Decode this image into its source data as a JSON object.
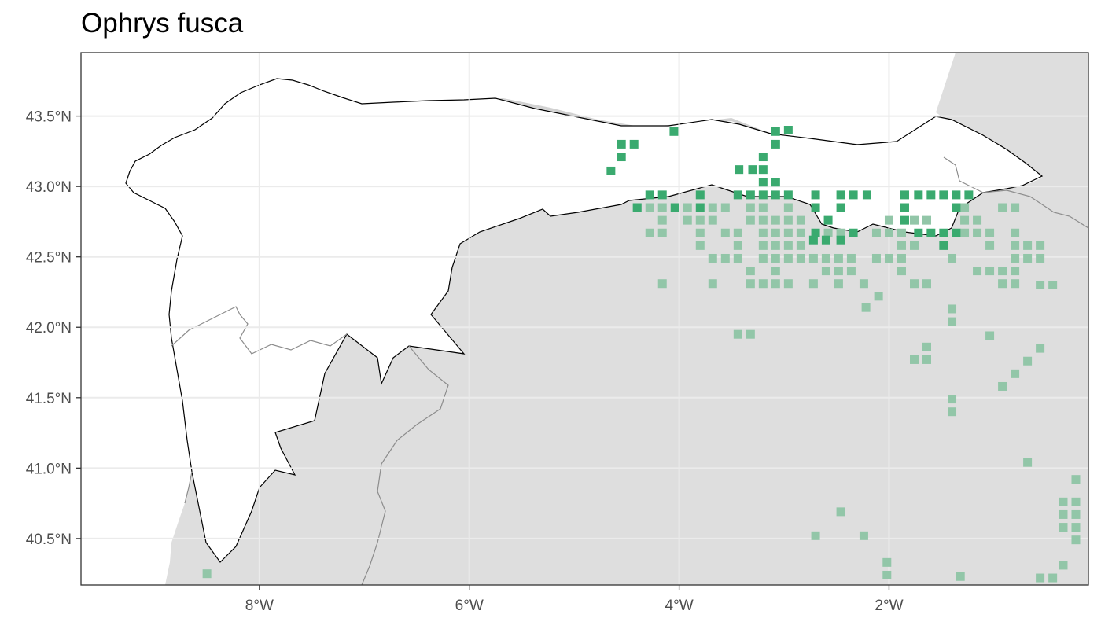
{
  "title": "Ophrys fusca",
  "map": {
    "lon_range": [
      -9.7,
      -0.1
    ],
    "lat_range": [
      40.17,
      43.95
    ],
    "x_ticks": [
      {
        "lon": -8,
        "label": "8°W"
      },
      {
        "lon": -6,
        "label": "6°W"
      },
      {
        "lon": -4,
        "label": "4°W"
      },
      {
        "lon": -2,
        "label": "2°W"
      }
    ],
    "y_ticks": [
      {
        "lat": 43.5,
        "label": "43.5°N"
      },
      {
        "lat": 43.0,
        "label": "43.0°N"
      },
      {
        "lat": 42.5,
        "label": "42.5°N"
      },
      {
        "lat": 42.0,
        "label": "42.0°N"
      },
      {
        "lat": 41.5,
        "label": "41.5°N"
      },
      {
        "lat": 41.0,
        "label": "41.0°N"
      },
      {
        "lat": 40.5,
        "label": "40.5°N"
      }
    ],
    "colors": {
      "panel_background": "#ffffff",
      "land_outside_region": "#dedede",
      "region_fill": "#ffffff",
      "region_border": "#000000",
      "internal_borders": "#8c8c8c",
      "grid": "#ebebeb",
      "records_inside": "#3aaa6f",
      "records_outside": "#92c6a8"
    },
    "legend": "none"
  },
  "records_inside": [
    [
      -4.65,
      43.11
    ],
    [
      -4.55,
      43.21
    ],
    [
      -4.55,
      43.3
    ],
    [
      -4.43,
      43.3
    ],
    [
      -4.05,
      43.39
    ],
    [
      -3.43,
      43.12
    ],
    [
      -3.3,
      43.12
    ],
    [
      -3.2,
      43.12
    ],
    [
      -3.2,
      43.21
    ],
    [
      -3.08,
      43.3
    ],
    [
      -3.08,
      43.39
    ],
    [
      -2.96,
      43.4
    ],
    [
      -3.2,
      43.03
    ],
    [
      -3.08,
      43.03
    ],
    [
      -3.2,
      42.94
    ],
    [
      -3.08,
      42.94
    ],
    [
      -2.96,
      42.94
    ],
    [
      -3.32,
      42.94
    ],
    [
      -3.44,
      42.94
    ],
    [
      -4.28,
      42.94
    ],
    [
      -4.16,
      42.94
    ],
    [
      -3.8,
      42.94
    ],
    [
      -4.4,
      42.85
    ],
    [
      -4.04,
      42.85
    ],
    [
      -3.8,
      42.85
    ],
    [
      -2.7,
      42.94
    ],
    [
      -2.46,
      42.94
    ],
    [
      -2.34,
      42.94
    ],
    [
      -2.21,
      42.94
    ],
    [
      -2.7,
      42.85
    ],
    [
      -2.46,
      42.85
    ],
    [
      -2.58,
      42.76
    ],
    [
      -2.7,
      42.67
    ],
    [
      -2.34,
      42.67
    ],
    [
      -2.46,
      42.62
    ],
    [
      -2.6,
      42.62
    ],
    [
      -2.72,
      42.62
    ],
    [
      -1.72,
      42.94
    ],
    [
      -1.6,
      42.94
    ],
    [
      -1.48,
      42.94
    ],
    [
      -1.36,
      42.94
    ],
    [
      -1.24,
      42.94
    ],
    [
      -1.85,
      42.94
    ],
    [
      -1.85,
      42.85
    ],
    [
      -1.36,
      42.85
    ],
    [
      -1.85,
      42.76
    ],
    [
      -1.6,
      42.67
    ],
    [
      -1.48,
      42.67
    ],
    [
      -1.36,
      42.67
    ],
    [
      -1.72,
      42.67
    ],
    [
      -1.48,
      42.58
    ]
  ],
  "records_outside": [
    [
      -4.4,
      42.85
    ],
    [
      -4.28,
      42.85
    ],
    [
      -4.16,
      42.85
    ],
    [
      -3.92,
      42.85
    ],
    [
      -3.68,
      42.85
    ],
    [
      -3.56,
      42.85
    ],
    [
      -3.32,
      42.85
    ],
    [
      -3.2,
      42.85
    ],
    [
      -2.96,
      42.85
    ],
    [
      -4.16,
      42.76
    ],
    [
      -3.92,
      42.76
    ],
    [
      -3.8,
      42.76
    ],
    [
      -3.68,
      42.76
    ],
    [
      -3.32,
      42.76
    ],
    [
      -3.2,
      42.76
    ],
    [
      -3.08,
      42.76
    ],
    [
      -2.96,
      42.76
    ],
    [
      -2.84,
      42.76
    ],
    [
      -4.28,
      42.67
    ],
    [
      -4.16,
      42.67
    ],
    [
      -3.8,
      42.67
    ],
    [
      -3.56,
      42.67
    ],
    [
      -3.44,
      42.67
    ],
    [
      -3.2,
      42.67
    ],
    [
      -3.08,
      42.67
    ],
    [
      -2.96,
      42.67
    ],
    [
      -2.84,
      42.67
    ],
    [
      -2.58,
      42.67
    ],
    [
      -2.46,
      42.67
    ],
    [
      -3.8,
      42.58
    ],
    [
      -3.44,
      42.58
    ],
    [
      -3.2,
      42.58
    ],
    [
      -3.08,
      42.58
    ],
    [
      -2.96,
      42.58
    ],
    [
      -2.84,
      42.58
    ],
    [
      -3.68,
      42.49
    ],
    [
      -3.56,
      42.49
    ],
    [
      -3.44,
      42.49
    ],
    [
      -3.2,
      42.49
    ],
    [
      -3.08,
      42.49
    ],
    [
      -2.96,
      42.49
    ],
    [
      -2.84,
      42.49
    ],
    [
      -2.72,
      42.49
    ],
    [
      -2.6,
      42.49
    ],
    [
      -2.48,
      42.49
    ],
    [
      -2.36,
      42.49
    ],
    [
      -3.32,
      42.4
    ],
    [
      -3.08,
      42.4
    ],
    [
      -2.6,
      42.4
    ],
    [
      -2.48,
      42.4
    ],
    [
      -2.36,
      42.4
    ],
    [
      -4.16,
      42.31
    ],
    [
      -3.68,
      42.31
    ],
    [
      -3.32,
      42.31
    ],
    [
      -3.2,
      42.31
    ],
    [
      -3.08,
      42.31
    ],
    [
      -2.96,
      42.31
    ],
    [
      -2.72,
      42.31
    ],
    [
      -2.48,
      42.31
    ],
    [
      -2.24,
      42.31
    ],
    [
      -2.0,
      42.76
    ],
    [
      -2.0,
      42.67
    ],
    [
      -2.12,
      42.49
    ],
    [
      -2.12,
      42.67
    ],
    [
      -2.0,
      42.49
    ],
    [
      -1.88,
      42.67
    ],
    [
      -1.88,
      42.58
    ],
    [
      -1.76,
      42.58
    ],
    [
      -1.88,
      42.49
    ],
    [
      -1.88,
      42.4
    ],
    [
      -1.76,
      42.31
    ],
    [
      -1.64,
      42.31
    ],
    [
      -1.76,
      42.76
    ],
    [
      -1.64,
      42.76
    ],
    [
      -1.4,
      42.49
    ],
    [
      -1.28,
      42.85
    ],
    [
      -1.16,
      42.76
    ],
    [
      -1.28,
      42.76
    ],
    [
      -1.28,
      42.67
    ],
    [
      -1.16,
      42.67
    ],
    [
      -1.04,
      42.67
    ],
    [
      -1.04,
      42.58
    ],
    [
      -0.92,
      42.85
    ],
    [
      -0.8,
      42.85
    ],
    [
      -0.8,
      42.67
    ],
    [
      -0.8,
      42.58
    ],
    [
      -0.68,
      42.58
    ],
    [
      -0.56,
      42.58
    ],
    [
      -0.8,
      42.49
    ],
    [
      -0.68,
      42.49
    ],
    [
      -0.56,
      42.49
    ],
    [
      -1.16,
      42.4
    ],
    [
      -1.04,
      42.4
    ],
    [
      -0.92,
      42.4
    ],
    [
      -0.8,
      42.4
    ],
    [
      -0.92,
      42.31
    ],
    [
      -0.8,
      42.31
    ],
    [
      -0.56,
      42.3
    ],
    [
      -0.44,
      42.3
    ],
    [
      -2.1,
      42.22
    ],
    [
      -2.22,
      42.14
    ],
    [
      -1.4,
      42.13
    ],
    [
      -1.4,
      42.04
    ],
    [
      -3.44,
      41.95
    ],
    [
      -3.32,
      41.95
    ],
    [
      -1.04,
      41.94
    ],
    [
      -1.64,
      41.86
    ],
    [
      -1.76,
      41.77
    ],
    [
      -1.64,
      41.77
    ],
    [
      -0.56,
      41.85
    ],
    [
      -0.68,
      41.76
    ],
    [
      -0.8,
      41.67
    ],
    [
      -0.92,
      41.58
    ],
    [
      -1.4,
      41.49
    ],
    [
      -1.4,
      41.4
    ],
    [
      -0.68,
      41.04
    ],
    [
      -2.46,
      40.69
    ],
    [
      -2.7,
      40.52
    ],
    [
      -2.24,
      40.52
    ],
    [
      -0.22,
      40.92
    ],
    [
      -0.34,
      40.76
    ],
    [
      -0.22,
      40.76
    ],
    [
      -0.34,
      40.67
    ],
    [
      -0.22,
      40.67
    ],
    [
      -0.34,
      40.58
    ],
    [
      -0.22,
      40.58
    ],
    [
      -0.22,
      40.49
    ],
    [
      -2.02,
      40.33
    ],
    [
      -2.02,
      40.24
    ],
    [
      -0.34,
      40.31
    ],
    [
      -0.44,
      40.22
    ],
    [
      -0.56,
      40.22
    ],
    [
      -1.32,
      40.23
    ],
    [
      -8.5,
      40.25
    ]
  ]
}
